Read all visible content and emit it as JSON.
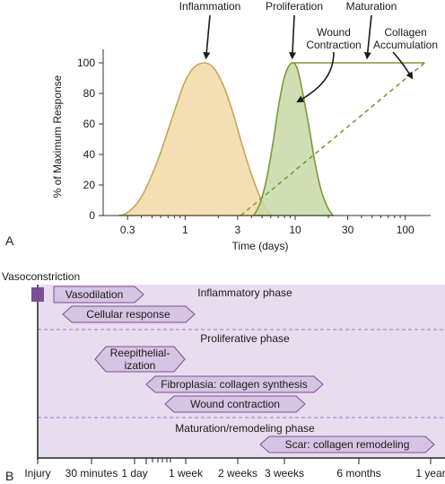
{
  "chart_data": [
    {
      "panel_label": "A",
      "type": "area",
      "xlabel": "Time (days)",
      "ylabel": "% of Maximum Response",
      "xscale": "log",
      "xlim": [
        0.18,
        170
      ],
      "ylim": [
        0,
        100
      ],
      "x_ticks": [
        {
          "value": 0.3,
          "label": "0.3"
        },
        {
          "value": 1,
          "label": "1"
        },
        {
          "value": 3,
          "label": "3"
        },
        {
          "value": 10,
          "label": "10"
        },
        {
          "value": 30,
          "label": "30"
        },
        {
          "value": 100,
          "label": "100"
        }
      ],
      "y_ticks": [
        {
          "value": 0,
          "label": "0"
        },
        {
          "value": 20,
          "label": "20"
        },
        {
          "value": 40,
          "label": "40"
        },
        {
          "value": 60,
          "label": "60"
        },
        {
          "value": 80,
          "label": "80"
        },
        {
          "value": 100,
          "label": "100"
        }
      ],
      "series": [
        {
          "kind": "area",
          "fill": "#f2d9a6",
          "stroke": "#c9a45c",
          "x": [
            0.25,
            0.3,
            0.4,
            0.55,
            0.7,
            0.85,
            1.0,
            1.2,
            1.5,
            1.8,
            2.2,
            2.7,
            3.3,
            4.0,
            4.8,
            5.6,
            6.3
          ],
          "y": [
            0,
            2,
            12,
            34,
            56,
            74,
            88,
            97,
            100,
            97,
            86,
            68,
            46,
            27,
            12,
            3,
            0
          ]
        },
        {
          "kind": "area",
          "fill": "#c8d9a6",
          "stroke": "#7a9a3a",
          "x": [
            4.2,
            4.8,
            5.5,
            6.3,
            7.0,
            7.8,
            8.6,
            9.4,
            10.2,
            11.0,
            12.0,
            13.5,
            15.0,
            17.0,
            19.5,
            22.0
          ],
          "y": [
            0,
            8,
            24,
            48,
            70,
            88,
            97,
            100,
            98,
            90,
            76,
            56,
            36,
            18,
            6,
            0
          ]
        },
        {
          "kind": "line",
          "stroke": "#7a9a3a",
          "x": [
            9.4,
            150
          ],
          "y": [
            100,
            100
          ]
        },
        {
          "kind": "dashed-line",
          "stroke": "#7a9a3a",
          "x": [
            3.2,
            150
          ],
          "y": [
            0,
            100
          ]
        }
      ],
      "annotations": [
        {
          "label": "Inflammation",
          "arrow_to": {
            "x": 1.55,
            "y": 101
          }
        },
        {
          "label": "Proliferation",
          "arrow_to": {
            "x": 9.4,
            "y": 101
          }
        },
        {
          "label": "Maturation",
          "arrow_to": {
            "x": 45,
            "y": 101
          }
        },
        {
          "label": "Wound Contraction",
          "arrow_to": {
            "x": 10,
            "y": 77
          }
        },
        {
          "label": "Collagen Accumulation",
          "arrow_to": {
            "x": 115,
            "y": 89
          }
        }
      ]
    },
    {
      "panel_label": "B",
      "type": "timeline",
      "x_ticks": [
        "Injury",
        "30 minutes",
        "1 day",
        "1 week",
        "2 weeks",
        "3 weeks",
        "6 months",
        "1 year"
      ],
      "marker_label": "Vasoconstriction",
      "phases": [
        "Inflammatory phase",
        "Proliferative phase",
        "Maturation/remodeling phase"
      ],
      "events": [
        {
          "label": "Vasodilation"
        },
        {
          "label": "Cellular response"
        },
        {
          "label": "Reepithelial-\nization"
        },
        {
          "label": "Fibroplasia: collagen synthesis"
        },
        {
          "label": "Wound contraction"
        },
        {
          "label": "Scar: collagen remodeling"
        }
      ]
    }
  ]
}
